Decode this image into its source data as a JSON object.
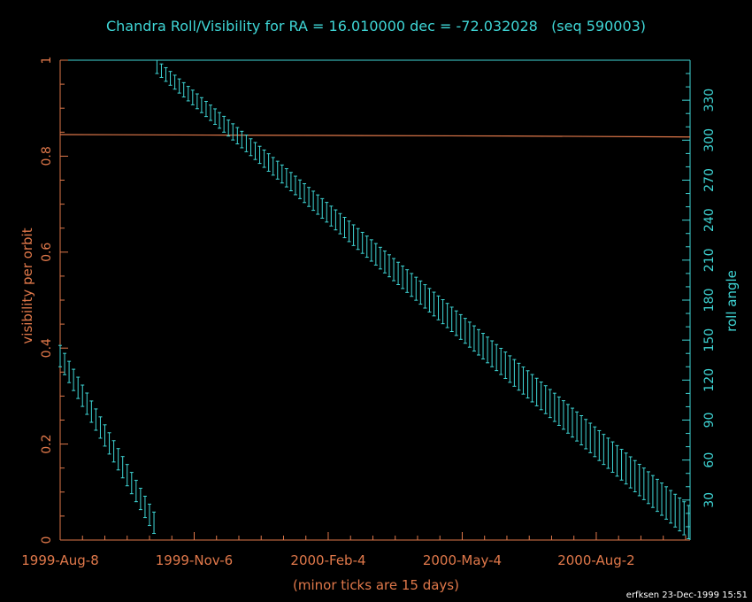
{
  "colors": {
    "background": "#000000",
    "left_axis": "#e0784a",
    "right_axis": "#3fd6d6",
    "visibility_line": "#e0784a",
    "roll_bars": "#3fd6d6",
    "footer": "#ffffff"
  },
  "footer_text": "erfksen 23-Dec-1999 15:51",
  "chart_data": {
    "type": "line",
    "title": "Chandra Roll/Visibility for RA = 16.010000 dec = -72.032028   (seq 590003)",
    "xlabel": "(minor ticks are 15 days)",
    "ylabel_left": "visibility per orbit",
    "ylabel_right": "roll angle",
    "x_tick_labels": [
      "1999-Aug-8",
      "1999-Nov-6",
      "2000-Feb-4",
      "2000-May-4",
      "2000-Aug-2"
    ],
    "x_tick_days": [
      0,
      90,
      180,
      270,
      360
    ],
    "x_minor_tick_days": 15,
    "x_range_days": [
      0,
      423
    ],
    "y_left_range": [
      0,
      1
    ],
    "y_left_ticks": [
      0,
      0.2,
      0.4,
      0.6,
      0.8,
      1
    ],
    "y_right_range": [
      0,
      360
    ],
    "y_right_ticks": [
      30,
      60,
      90,
      120,
      150,
      180,
      210,
      240,
      270,
      300,
      330
    ],
    "grid": false,
    "series": [
      {
        "axis": "left",
        "x_days": [
          0,
          100,
          200,
          300,
          423
        ],
        "values": [
          0.845,
          0.844,
          0.843,
          0.842,
          0.84
        ]
      },
      {
        "axis": "right",
        "bar_spacing_days": 3,
        "segments": [
          {
            "start_day": 0,
            "start_upper": 146,
            "start_lower": 130,
            "end_day": 65,
            "end_upper": 17,
            "end_lower": 1
          },
          {
            "start_day": 65,
            "start_upper": 360,
            "start_lower": 350,
            "end_day": 423,
            "end_upper": 25,
            "end_lower": 0
          }
        ]
      }
    ]
  }
}
